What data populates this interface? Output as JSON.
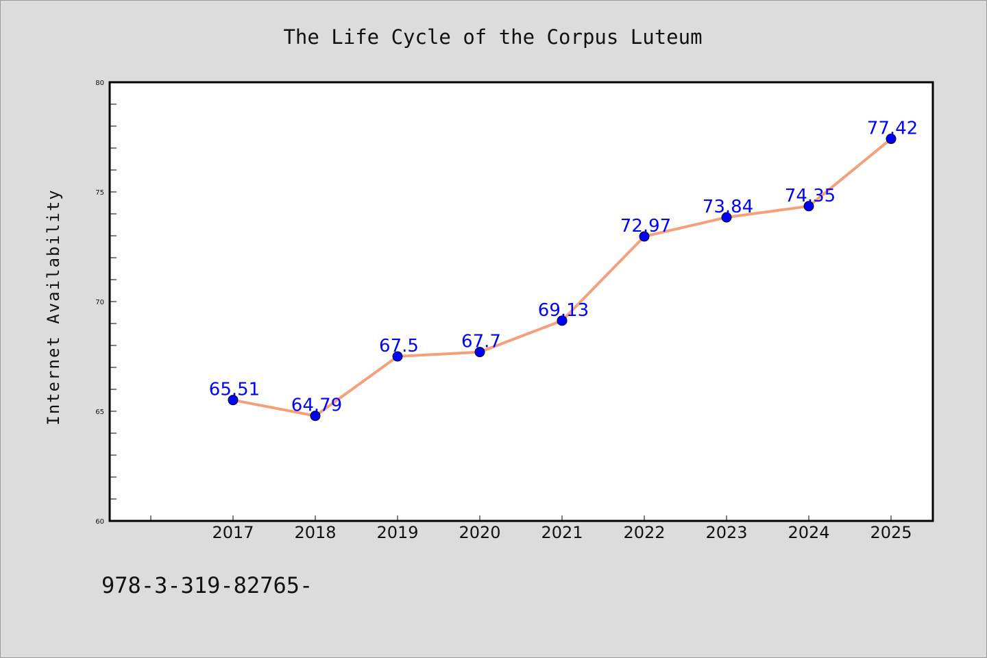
{
  "chart_data": {
    "type": "line",
    "title": "The Life Cycle of the Corpus Luteum",
    "xlabel": "",
    "ylabel": "Internet Availability",
    "categories": [
      "2017",
      "2018",
      "2019",
      "2020",
      "2021",
      "2022",
      "2023",
      "2024",
      "2025"
    ],
    "series": [
      {
        "values": [
          65.51,
          64.79,
          67.5,
          67.7,
          69.13,
          72.97,
          73.84,
          74.35,
          77.42
        ],
        "data_labels": [
          "65.51",
          "64.79",
          "67.5",
          "67.7",
          "69.13",
          "72.97",
          "73.84",
          "74.35",
          "77.42"
        ]
      }
    ],
    "ylim": [
      60,
      80
    ],
    "yticks": [
      "60",
      "65",
      "70",
      "75",
      "80"
    ],
    "grid": false,
    "legend": "none",
    "colors": {
      "line": "#f5a07a",
      "marker": "#0000ff",
      "marker_edge": "#000000",
      "data_label": "#0000ff",
      "background": "#dcdcdc",
      "plot_background": "#ffffff"
    }
  },
  "footnote": "978-3-319-82765-"
}
